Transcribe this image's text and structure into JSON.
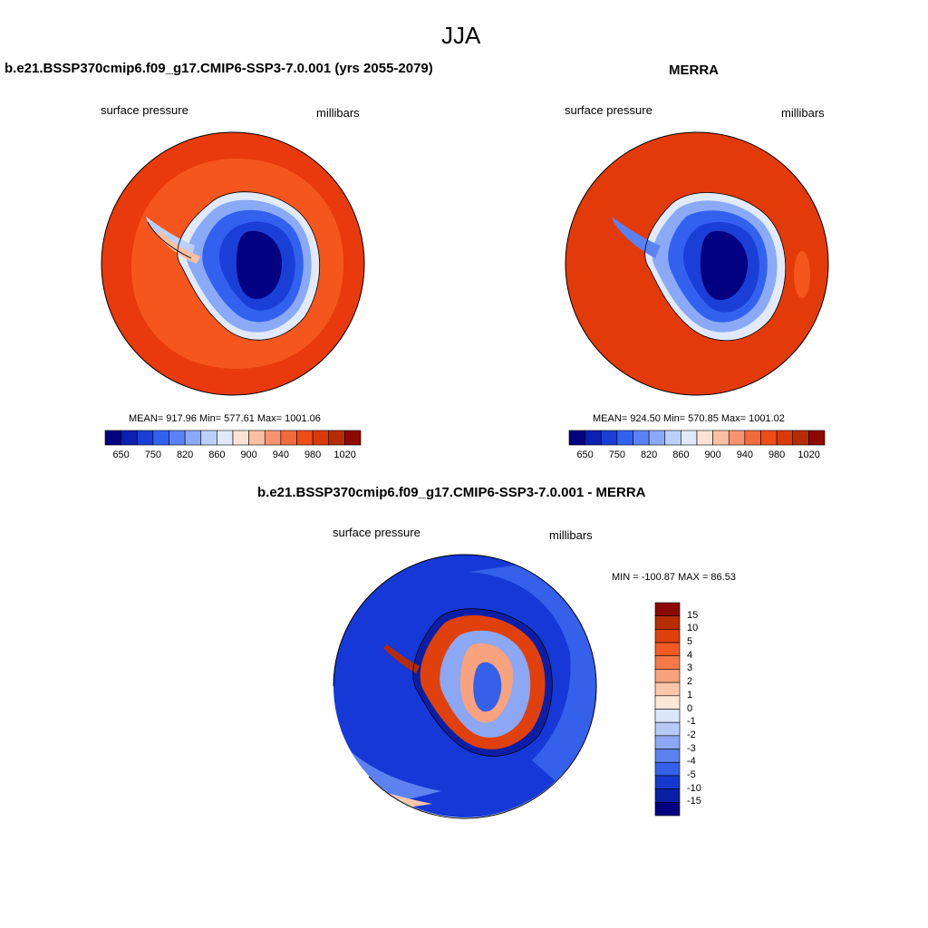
{
  "page": {
    "season": "JJA"
  },
  "panels": {
    "model": {
      "title": "b.e21.BSSP370cmip6.f09_g17.CMIP6-SSP3-7.0.001 (yrs 2055-2079)",
      "variable": "surface pressure",
      "units": "millibars",
      "stats": "MEAN= 917.96  Min= 577.61  Max= 1001.06"
    },
    "obs": {
      "title": "MERRA",
      "variable": "surface pressure",
      "units": "millibars",
      "stats": "MEAN= 924.50  Min= 570.85  Max= 1001.02"
    },
    "diff": {
      "title": "b.e21.BSSP370cmip6.f09_g17.CMIP6-SSP3-7.0.001 - MERRA",
      "variable": "surface pressure",
      "units": "millibars",
      "stats": "MIN = -100.87 MAX =  86.53"
    }
  },
  "colorbars": {
    "abs_labels": [
      "650",
      "750",
      "820",
      "860",
      "900",
      "940",
      "980",
      "1020"
    ],
    "abs_colors": [
      "#000080",
      "#0a20b0",
      "#1a3fd6",
      "#3361ef",
      "#5a82f5",
      "#8aaaf7",
      "#bad0f9",
      "#e0eafb",
      "#fde4d6",
      "#fbc0a2",
      "#f89570",
      "#f46a3e",
      "#ee4d1a",
      "#d93a0a",
      "#b82c04",
      "#8b0a00"
    ],
    "diff_labels": [
      "15",
      "10",
      "5",
      "4",
      "3",
      "2",
      "1",
      "0",
      "-1",
      "-2",
      "-3",
      "-4",
      "-5",
      "-10",
      "-15"
    ],
    "diff_colors": [
      "#8b0a00",
      "#b82c04",
      "#e0400c",
      "#f25a24",
      "#f47a4a",
      "#f8a27e",
      "#fbc7aa",
      "#fde8d8",
      "#dce6fa",
      "#b6c9f7",
      "#8ca7f4",
      "#5d82f0",
      "#3560ea",
      "#1438d0",
      "#0a1fa6",
      "#000080"
    ]
  },
  "colors": {
    "ocean_model_outer": "#e83a0c",
    "ocean_model_inner": "#f4561e",
    "ocean_obs": "#e33a0a",
    "ocean_diff": "#1538d6"
  }
}
